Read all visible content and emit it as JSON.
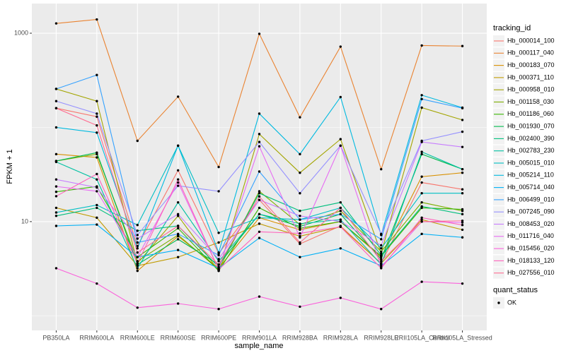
{
  "chart_data": {
    "type": "line",
    "x_label": "sample_name",
    "y_label": "FPKM + 1",
    "categories": [
      "PB350LA",
      "RRIM600LA",
      "RRIM600LE",
      "RRIM600SE",
      "RRIM600PE",
      "RRIM901LA",
      "RRIM928BA",
      "RRIM928LA",
      "RRIM928LE",
      "RRII105LA_Control",
      "RRII105LA_Stressed"
    ],
    "log_y": true,
    "ylim": [
      0.7,
      2065
    ],
    "yticks": [
      10,
      1000
    ],
    "minor_yticks": [
      1,
      100
    ],
    "grid": true,
    "legend_title": "tracking_id",
    "legend_position": "right",
    "status_legend": {
      "title": "quant_status",
      "items": [
        "OK"
      ]
    },
    "point_color": "#000000",
    "series": [
      {
        "name": "Hb_000014_100",
        "color": "#F8766D",
        "values": [
          160,
          130,
          5.5,
          35,
          4.6,
          17,
          5.8,
          9,
          3.6,
          26,
          22
        ]
      },
      {
        "name": "Hb_000117_040",
        "color": "#EA8331",
        "values": [
          1270,
          1400,
          72,
          212,
          38,
          985,
          128,
          720,
          36,
          740,
          730
        ]
      },
      {
        "name": "Hb_000183_070",
        "color": "#D89000",
        "values": [
          52,
          48,
          3.0,
          7.0,
          3.2,
          11,
          8.2,
          10,
          4.2,
          30,
          33
        ]
      },
      {
        "name": "Hb_000371_110",
        "color": "#C09B00",
        "values": [
          14,
          11,
          3.4,
          4.2,
          6.0,
          9.5,
          7.0,
          8.8,
          3.6,
          10.5,
          8.2
        ]
      },
      {
        "name": "Hb_000958_010",
        "color": "#A3A500",
        "values": [
          256,
          190,
          3.6,
          11.5,
          3.0,
          85,
          33,
          75,
          4.6,
          162,
          120
        ]
      },
      {
        "name": "Hb_001158_030",
        "color": "#7CAE00",
        "values": [
          44,
          52,
          3.8,
          7.2,
          3.1,
          21,
          9.3,
          13,
          4.8,
          16,
          13
        ]
      },
      {
        "name": "Hb_001186_060",
        "color": "#39B600",
        "values": [
          20.7,
          23.6,
          4.2,
          8.5,
          3.0,
          14,
          8.5,
          10,
          4.3,
          14,
          13.5
        ]
      },
      {
        "name": "Hb_001930_070",
        "color": "#00BB4E",
        "values": [
          44,
          54,
          3.5,
          6.5,
          3.5,
          12,
          8.9,
          12,
          4.0,
          52,
          36
        ]
      },
      {
        "name": "Hb_002400_390",
        "color": "#00BF7D",
        "values": [
          11.5,
          14,
          8.0,
          9,
          3.3,
          20,
          13,
          16,
          4.4,
          14.5,
          12
        ]
      },
      {
        "name": "Hb_002783_230",
        "color": "#00C1A3",
        "values": [
          43,
          28,
          3.2,
          16,
          3.8,
          12,
          9.5,
          10.5,
          3.5,
          55,
          36
        ]
      },
      {
        "name": "Hb_005015_010",
        "color": "#00BFC4",
        "values": [
          12.5,
          15,
          9.2,
          64,
          7.6,
          11,
          10.5,
          14,
          5.2,
          20,
          20
        ]
      },
      {
        "name": "Hb_005214_110",
        "color": "#00BAE0",
        "values": [
          100,
          88,
          5.2,
          64,
          4.7,
          140,
          52,
          210,
          7.2,
          220,
          162
        ]
      },
      {
        "name": "Hb_005714_040",
        "color": "#00B0F6",
        "values": [
          9.0,
          9.3,
          4.2,
          5.0,
          3.2,
          6.7,
          4.2,
          5.2,
          3.4,
          7.4,
          6.8
        ]
      },
      {
        "name": "Hb_006499_010",
        "color": "#35A2FF",
        "values": [
          256,
          360,
          6.0,
          7.4,
          4.4,
          34,
          10.5,
          12,
          6.5,
          200,
          160
        ]
      },
      {
        "name": "Hb_007245_090",
        "color": "#9590FF",
        "values": [
          190,
          140,
          7.2,
          24,
          21,
          70,
          20,
          64,
          7.4,
          72,
          90
        ]
      },
      {
        "name": "Hb_008453_020",
        "color": "#C77CFF",
        "values": [
          28,
          23,
          6.6,
          12,
          4.0,
          17,
          11.5,
          10,
          5.6,
          70,
          62
        ]
      },
      {
        "name": "Hb_011716_040",
        "color": "#E76BF3",
        "values": [
          23.6,
          21,
          4.2,
          26,
          3.1,
          63,
          6.8,
          64,
          3.3,
          10,
          9.8
        ]
      },
      {
        "name": "Hb_015456_020",
        "color": "#FA62DB",
        "values": [
          3.2,
          2.2,
          1.22,
          1.35,
          1.18,
          1.6,
          1.25,
          1.55,
          1.18,
          2.3,
          2.2
        ]
      },
      {
        "name": "Hb_018133_120",
        "color": "#FF62BC",
        "values": [
          18.6,
          32,
          3.6,
          28,
          3.1,
          7.8,
          7.5,
          8.8,
          3.2,
          11,
          9.2
        ]
      },
      {
        "name": "Hb_027556_010",
        "color": "#FF6C91",
        "values": [
          160,
          105,
          4.7,
          9,
          3.5,
          18.5,
          6.0,
          14,
          3.8,
          10,
          10.2
        ]
      }
    ]
  }
}
